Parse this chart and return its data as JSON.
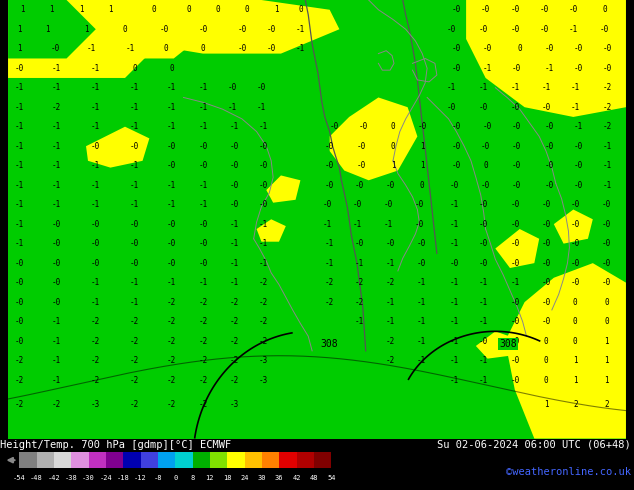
{
  "title_left": "Height/Temp. 700 hPa [gdmp][°C] ECMWF",
  "title_right": "Su 02-06-2024 06:00 UTC (06+48)",
  "credit": "©weatheronline.co.uk",
  "colorbar_tick_labels": [
    "-54",
    "-48",
    "-42",
    "-38",
    "-30",
    "-24",
    "-18",
    "-12",
    "-8",
    "0",
    "8",
    "12",
    "18",
    "24",
    "30",
    "36",
    "42",
    "48",
    "54"
  ],
  "colorbar_colors": [
    "#808080",
    "#b0b0b0",
    "#d8d8d8",
    "#e090e0",
    "#c030c0",
    "#800090",
    "#0000b0",
    "#4040e0",
    "#00a0f0",
    "#00d0d0",
    "#00b000",
    "#80e000",
    "#ffff00",
    "#ffc000",
    "#ff8000",
    "#e00000",
    "#b00000",
    "#800000"
  ],
  "green": "#00cc00",
  "yellow": "#ffff00",
  "dark_green": "#009900",
  "fig_width": 6.34,
  "fig_height": 4.9,
  "dpi": 100
}
